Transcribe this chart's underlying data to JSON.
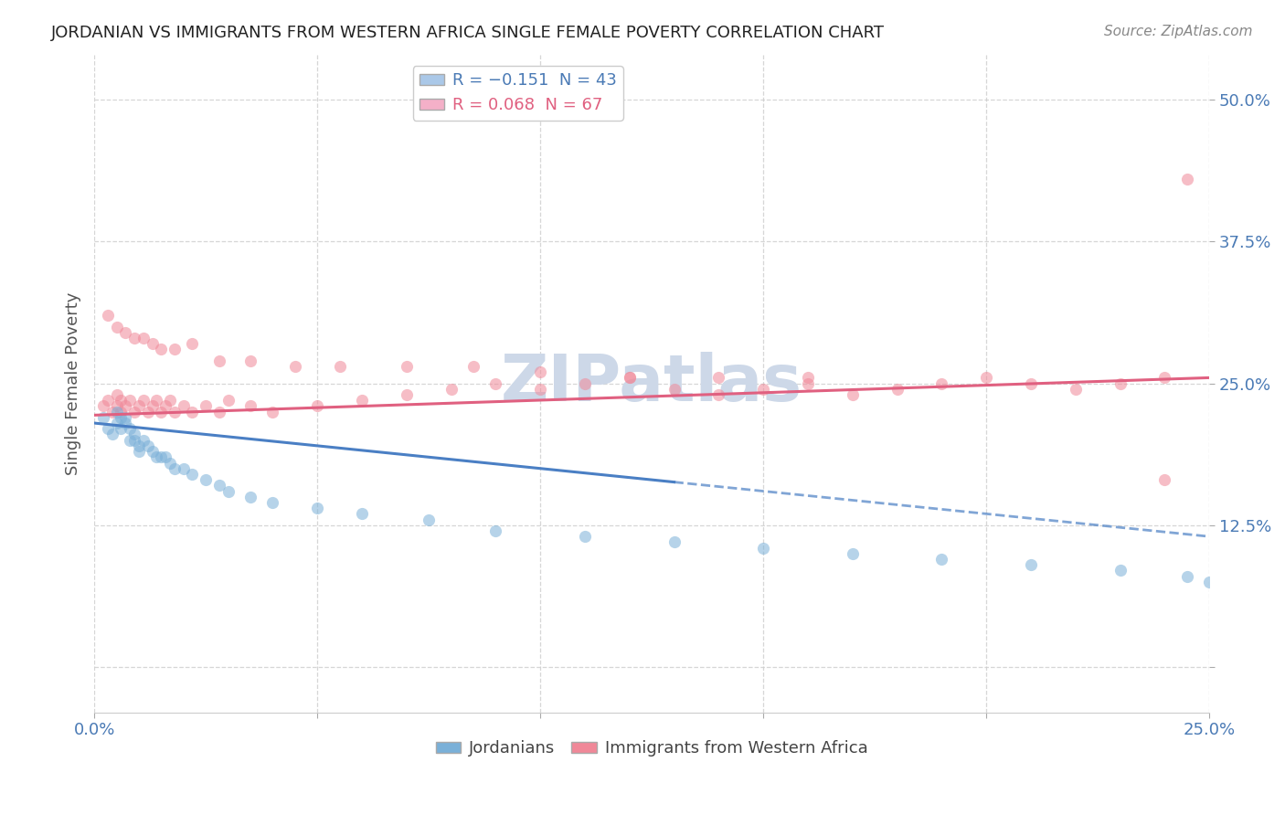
{
  "title": "JORDANIAN VS IMMIGRANTS FROM WESTERN AFRICA SINGLE FEMALE POVERTY CORRELATION CHART",
  "source": "Source: ZipAtlas.com",
  "ylabel": "Single Female Poverty",
  "xlim": [
    0.0,
    0.25
  ],
  "ylim": [
    -0.04,
    0.54
  ],
  "ytick_positions": [
    0.0,
    0.125,
    0.25,
    0.375,
    0.5
  ],
  "yticklabels": [
    "",
    "12.5%",
    "25.0%",
    "37.5%",
    "50.0%"
  ],
  "watermark": "ZIPatlas",
  "watermark_color": "#cdd8e8",
  "jordanians_color": "#7ab0d8",
  "immigrants_color": "#f08898",
  "trend_jordan_color": "#4a7fc4",
  "trend_immig_color": "#e06080",
  "legend_blue_color": "#aac8e8",
  "legend_pink_color": "#f4b0c8",
  "jordanians_x": [
    0.002,
    0.003,
    0.004,
    0.005,
    0.005,
    0.006,
    0.006,
    0.007,
    0.007,
    0.008,
    0.008,
    0.009,
    0.009,
    0.01,
    0.01,
    0.011,
    0.012,
    0.013,
    0.014,
    0.015,
    0.016,
    0.017,
    0.018,
    0.02,
    0.022,
    0.025,
    0.028,
    0.03,
    0.035,
    0.04,
    0.05,
    0.06,
    0.075,
    0.09,
    0.11,
    0.13,
    0.15,
    0.17,
    0.19,
    0.21,
    0.23,
    0.245,
    0.25
  ],
  "jordanians_y": [
    0.22,
    0.21,
    0.205,
    0.225,
    0.215,
    0.22,
    0.21,
    0.22,
    0.215,
    0.21,
    0.2,
    0.205,
    0.2,
    0.195,
    0.19,
    0.2,
    0.195,
    0.19,
    0.185,
    0.185,
    0.185,
    0.18,
    0.175,
    0.175,
    0.17,
    0.165,
    0.16,
    0.155,
    0.15,
    0.145,
    0.14,
    0.135,
    0.13,
    0.12,
    0.115,
    0.11,
    0.105,
    0.1,
    0.095,
    0.09,
    0.085,
    0.08,
    0.075
  ],
  "immigrants_x": [
    0.002,
    0.003,
    0.004,
    0.005,
    0.005,
    0.006,
    0.006,
    0.007,
    0.008,
    0.009,
    0.01,
    0.011,
    0.012,
    0.013,
    0.014,
    0.015,
    0.016,
    0.017,
    0.018,
    0.02,
    0.022,
    0.025,
    0.028,
    0.03,
    0.035,
    0.04,
    0.05,
    0.06,
    0.07,
    0.08,
    0.09,
    0.1,
    0.11,
    0.12,
    0.13,
    0.14,
    0.15,
    0.16,
    0.17,
    0.18,
    0.19,
    0.2,
    0.21,
    0.22,
    0.23,
    0.24,
    0.003,
    0.005,
    0.007,
    0.009,
    0.011,
    0.013,
    0.015,
    0.018,
    0.022,
    0.028,
    0.035,
    0.045,
    0.055,
    0.07,
    0.085,
    0.1,
    0.12,
    0.14,
    0.16,
    0.24,
    0.245
  ],
  "immigrants_y": [
    0.23,
    0.235,
    0.225,
    0.23,
    0.24,
    0.235,
    0.225,
    0.23,
    0.235,
    0.225,
    0.23,
    0.235,
    0.225,
    0.23,
    0.235,
    0.225,
    0.23,
    0.235,
    0.225,
    0.23,
    0.225,
    0.23,
    0.225,
    0.235,
    0.23,
    0.225,
    0.23,
    0.235,
    0.24,
    0.245,
    0.25,
    0.245,
    0.25,
    0.255,
    0.245,
    0.24,
    0.245,
    0.25,
    0.24,
    0.245,
    0.25,
    0.255,
    0.25,
    0.245,
    0.25,
    0.255,
    0.31,
    0.3,
    0.295,
    0.29,
    0.29,
    0.285,
    0.28,
    0.28,
    0.285,
    0.27,
    0.27,
    0.265,
    0.265,
    0.265,
    0.265,
    0.26,
    0.255,
    0.255,
    0.255,
    0.165,
    0.43
  ],
  "trend_jordan_start_y": 0.215,
  "trend_jordan_end_y": 0.115,
  "trend_jordan_solid_end_x": 0.13,
  "trend_immig_start_y": 0.222,
  "trend_immig_end_y": 0.255
}
